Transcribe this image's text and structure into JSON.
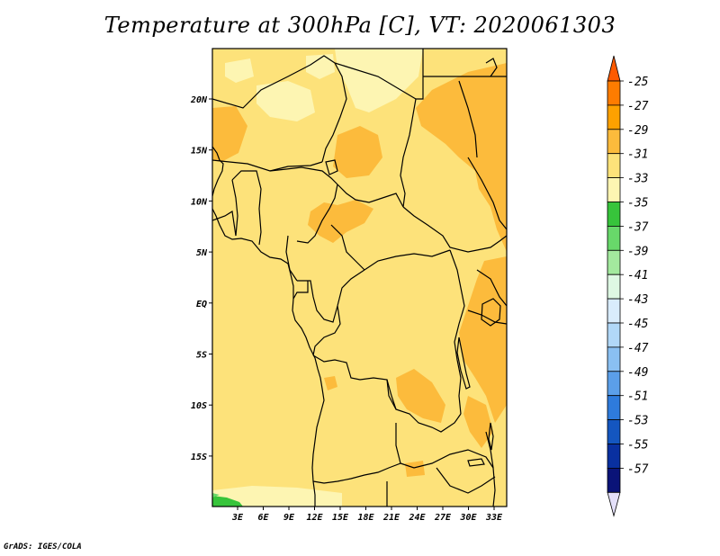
{
  "title": "Temperature at 300hPa [C], VT: 2020061303",
  "credit": "GrADS: IGES/COLA",
  "map": {
    "x_ticks": [
      "3E",
      "6E",
      "9E",
      "12E",
      "15E",
      "18E",
      "21E",
      "24E",
      "27E",
      "30E",
      "33E"
    ],
    "y_ticks": [
      "20N",
      "15N",
      "10N",
      "5N",
      "EQ",
      "5S",
      "10S",
      "15S"
    ],
    "base_color": "#fde27a"
  },
  "colorbar": {
    "levels": [
      "-25",
      "-27",
      "-29",
      "-31",
      "-33",
      "-35",
      "-37",
      "-39",
      "-41",
      "-43",
      "-45",
      "-47",
      "-49",
      "-51",
      "-53",
      "-55",
      "-57"
    ],
    "colors": [
      "#fe5a00",
      "#fe7c00",
      "#fea100",
      "#fcbb3c",
      "#fde27a",
      "#fdf5b2",
      "#37c43b",
      "#68d86a",
      "#a3e99e",
      "#def8e3",
      "#d9ecfc",
      "#b1d8f8",
      "#8ac0f2",
      "#5b9fe9",
      "#2e7bdc",
      "#1456c0",
      "#0930a0",
      "#0a1378",
      "#e4e0fa"
    ]
  }
}
